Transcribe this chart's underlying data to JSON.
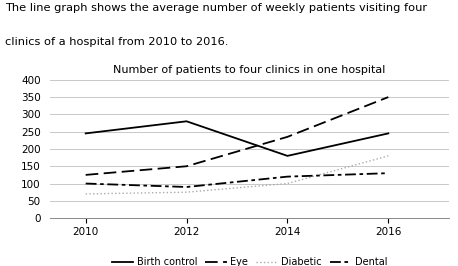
{
  "title_main_line1": "The line graph shows the average number of weekly patients visiting four",
  "title_main_line2": "clinics of a hospital from 2010 to 2016.",
  "title_chart": "Number of patients to four clinics in one hospital",
  "years": [
    2010,
    2012,
    2014,
    2016
  ],
  "birth_control": [
    245,
    280,
    180,
    245
  ],
  "eye": [
    125,
    150,
    235,
    350
  ],
  "diabetic": [
    70,
    75,
    100,
    180
  ],
  "dental": [
    100,
    90,
    120,
    130
  ],
  "ylim": [
    0,
    400
  ],
  "yticks": [
    0,
    50,
    100,
    150,
    200,
    250,
    300,
    350,
    400
  ],
  "xticks": [
    2010,
    2012,
    2014,
    2016
  ],
  "legend_labels": [
    "Birth control",
    "Eye",
    "Diabetic",
    "Dental"
  ],
  "line_color": "#000000",
  "background_color": "#ffffff",
  "grid_color": "#c8c8c8"
}
